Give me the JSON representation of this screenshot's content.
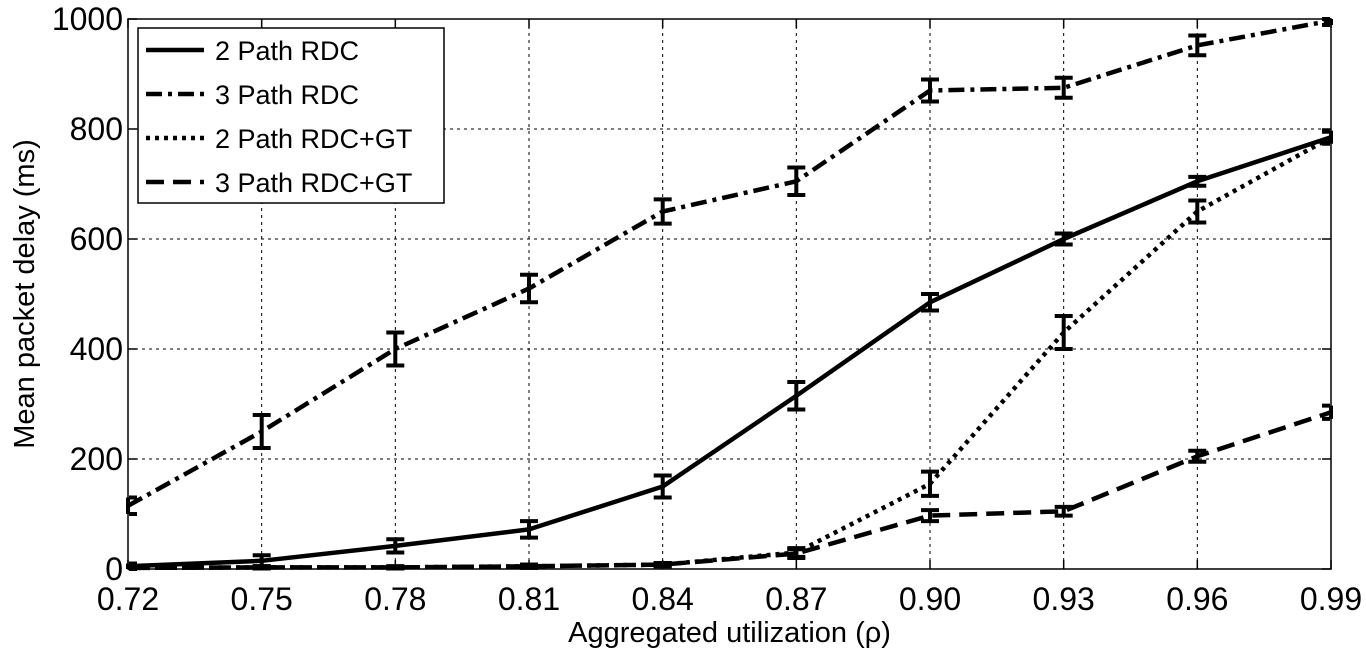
{
  "chart_data": {
    "type": "line",
    "xlabel": "Aggregated utilization (ρ)",
    "ylabel": "Mean packet delay (ms)",
    "x": [
      0.72,
      0.75,
      0.78,
      0.81,
      0.84,
      0.87,
      0.9,
      0.93,
      0.96,
      0.99
    ],
    "x_tick_labels": [
      "0.72",
      "0.75",
      "0.78",
      "0.81",
      "0.84",
      "0.87",
      "0.90",
      "0.93",
      "0.96",
      "0.99"
    ],
    "y_ticks": [
      0,
      200,
      400,
      600,
      800,
      1000
    ],
    "y_tick_labels": [
      "0",
      "200",
      "400",
      "600",
      "800",
      "1000"
    ],
    "xlim": [
      0.72,
      0.99
    ],
    "ylim": [
      0,
      1000
    ],
    "grid": true,
    "legend_position": "top-left",
    "series": [
      {
        "name": "2 Path RDC",
        "style": "solid",
        "values": [
          5,
          15,
          42,
          72,
          150,
          315,
          485,
          600,
          705,
          785
        ],
        "errors": [
          5,
          10,
          12,
          15,
          20,
          25,
          15,
          10,
          8,
          10
        ]
      },
      {
        "name": "3 Path RDC",
        "style": "dashdot",
        "values": [
          115,
          250,
          400,
          510,
          650,
          705,
          870,
          875,
          952,
          997
        ],
        "errors": [
          15,
          30,
          30,
          25,
          22,
          25,
          20,
          18,
          18,
          8
        ]
      },
      {
        "name": "2 Path RDC+GT",
        "style": "dotted",
        "values": [
          2,
          3,
          3,
          5,
          8,
          30,
          155,
          430,
          650,
          785
        ],
        "errors": [
          2,
          2,
          2,
          3,
          3,
          8,
          22,
          30,
          20,
          12
        ]
      },
      {
        "name": "3 Path RDC+GT",
        "style": "dashed",
        "values": [
          2,
          3,
          3,
          5,
          8,
          28,
          97,
          105,
          205,
          285
        ],
        "errors": [
          2,
          2,
          2,
          3,
          3,
          8,
          10,
          8,
          10,
          12
        ]
      }
    ],
    "colors": {
      "line": "#000000",
      "grid": "#000000",
      "background": "#ffffff"
    }
  }
}
